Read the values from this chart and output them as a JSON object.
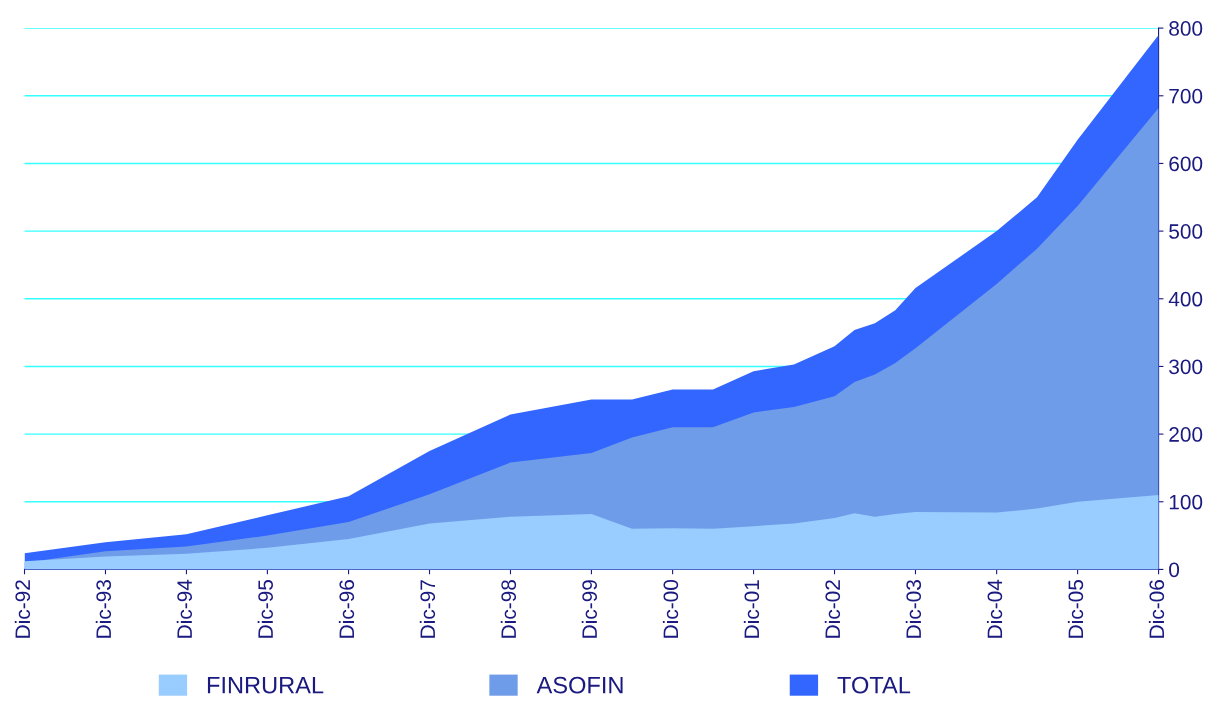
{
  "chart_data": {
    "type": "area",
    "x": [
      "1992-12",
      "1993-12",
      "1994-12",
      "1995-12",
      "1996-12",
      "1997-12",
      "1998-12",
      "1999-12",
      "2000-06",
      "2000-12",
      "2001-06",
      "2001-12",
      "2002-06",
      "2002-12",
      "2003-03",
      "2003-06",
      "2003-09",
      "2003-12",
      "2004-12",
      "2005-06",
      "2005-12",
      "2006-12"
    ],
    "series": [
      {
        "name": "FINRURAL",
        "color": "#99ccff",
        "values": [
          12,
          19,
          23,
          32,
          45,
          68,
          78,
          82,
          60,
          61,
          60,
          64,
          68,
          76,
          83,
          78,
          82,
          85,
          84,
          90,
          100,
          110
        ]
      },
      {
        "name": "ASOFIN",
        "color": "#6f9ce8",
        "values": [
          10,
          27,
          34,
          50,
          70,
          111,
          158,
          172,
          195,
          210,
          210,
          232,
          240,
          256,
          277,
          288,
          305,
          327,
          422,
          474,
          537,
          682
        ]
      },
      {
        "name": "TOTAL",
        "color": "#3366ff",
        "values": [
          24,
          40,
          52,
          80,
          108,
          175,
          229,
          251,
          251,
          266,
          266,
          293,
          303,
          330,
          354,
          364,
          383,
          416,
          500,
          550,
          635,
          790
        ]
      }
    ],
    "xlim": [
      "1992-12",
      "2006-12"
    ],
    "xticks": [
      {
        "value": "1992-12",
        "label": "Dic-92"
      },
      {
        "value": "1993-12",
        "label": "Dic-93"
      },
      {
        "value": "1994-12",
        "label": "Dic-94"
      },
      {
        "value": "1995-12",
        "label": "Dic-95"
      },
      {
        "value": "1996-12",
        "label": "Dic-96"
      },
      {
        "value": "1997-12",
        "label": "Dic-97"
      },
      {
        "value": "1998-12",
        "label": "Dic-98"
      },
      {
        "value": "1999-12",
        "label": "Dic-99"
      },
      {
        "value": "2000-12",
        "label": "Dic-00"
      },
      {
        "value": "2001-12",
        "label": "Dic-01"
      },
      {
        "value": "2002-12",
        "label": "Dic-02"
      },
      {
        "value": "2003-12",
        "label": "Dic-03"
      },
      {
        "value": "2004-12",
        "label": "Dic-04"
      },
      {
        "value": "2005-12",
        "label": "Dic-05"
      },
      {
        "value": "2006-12",
        "label": "Dic-06"
      }
    ],
    "ylim": [
      0,
      800
    ],
    "yticks": [
      0,
      100,
      200,
      300,
      400,
      500,
      600,
      700,
      800
    ],
    "grid": "y",
    "legend": "bottom"
  }
}
